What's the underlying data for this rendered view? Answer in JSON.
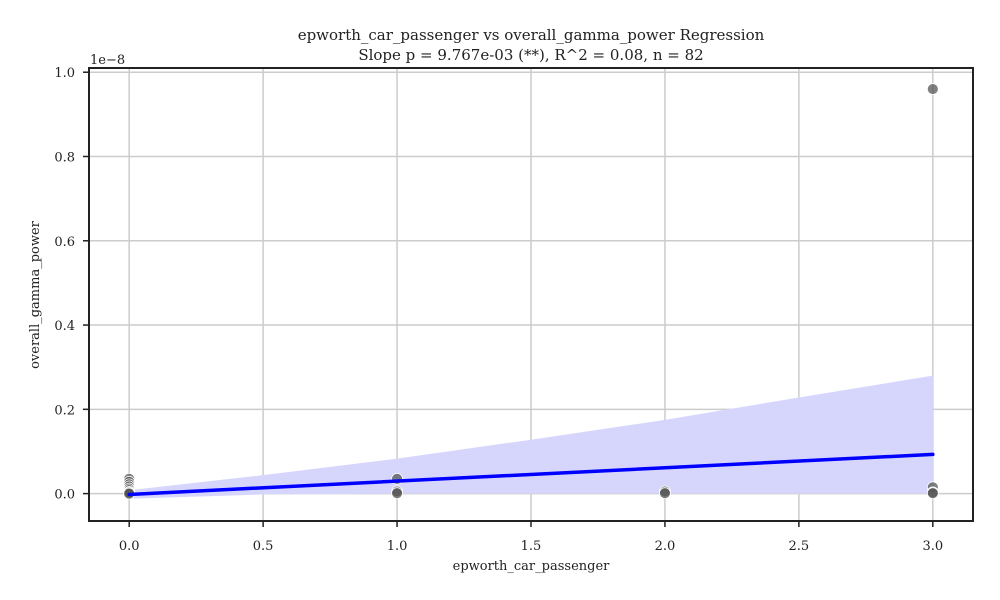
{
  "chart_data": {
    "type": "scatter",
    "title_line1": "epworth_car_passenger vs overall_gamma_power Regression",
    "title_line2": "Slope p = 9.767e-03 (**), R^2 = 0.08, n = 82",
    "xlabel": "epworth_car_passenger",
    "ylabel": "overall_gamma_power",
    "y_scale_label": "1e−8",
    "xlim": [
      -0.15,
      3.15
    ],
    "ylim": [
      -0.065,
      1.01
    ],
    "x_ticks": [
      0.0,
      0.5,
      1.0,
      1.5,
      2.0,
      2.5,
      3.0
    ],
    "x_tick_labels": [
      "0.0",
      "0.5",
      "1.0",
      "1.5",
      "2.0",
      "2.5",
      "3.0"
    ],
    "y_ticks": [
      0.0,
      0.2,
      0.4,
      0.6,
      0.8,
      1.0
    ],
    "y_tick_labels": [
      "0.0",
      "0.2",
      "0.4",
      "0.6",
      "0.8",
      "1.0"
    ],
    "grid": true,
    "colors": {
      "points": "#555555",
      "regression_line": "#0000ff",
      "confidence_band": "#d6d6fd",
      "grid": "#cccccc",
      "axes": "#222222"
    },
    "points": [
      {
        "x": 0.0,
        "y": 0.035
      },
      {
        "x": 0.0,
        "y": 0.028
      },
      {
        "x": 0.0,
        "y": 0.022
      },
      {
        "x": 0.0,
        "y": 0.017
      },
      {
        "x": 0.0,
        "y": 0.012
      },
      {
        "x": 0.0,
        "y": 0.008
      },
      {
        "x": 0.0,
        "y": 0.004
      },
      {
        "x": 0.0,
        "y": 0.002
      },
      {
        "x": 0.0,
        "y": 0.0
      },
      {
        "x": 1.0,
        "y": 0.035
      },
      {
        "x": 1.0,
        "y": 0.005
      },
      {
        "x": 1.0,
        "y": 0.001
      },
      {
        "x": 2.0,
        "y": 0.005
      },
      {
        "x": 2.0,
        "y": 0.001
      },
      {
        "x": 3.0,
        "y": 0.96
      },
      {
        "x": 3.0,
        "y": 0.015
      },
      {
        "x": 3.0,
        "y": 0.003
      },
      {
        "x": 3.0,
        "y": 0.001
      }
    ],
    "regression": {
      "x": [
        0.0,
        3.0
      ],
      "y": [
        -0.002,
        0.093
      ]
    },
    "confidence_band": {
      "x": [
        0.0,
        0.5,
        1.0,
        1.5,
        2.0,
        2.5,
        3.0
      ],
      "upper": [
        0.008,
        0.044,
        0.083,
        0.128,
        0.175,
        0.228,
        0.28
      ],
      "lower": [
        -0.012,
        -0.002,
        0.0,
        0.0,
        0.0,
        0.0,
        0.0
      ]
    }
  }
}
